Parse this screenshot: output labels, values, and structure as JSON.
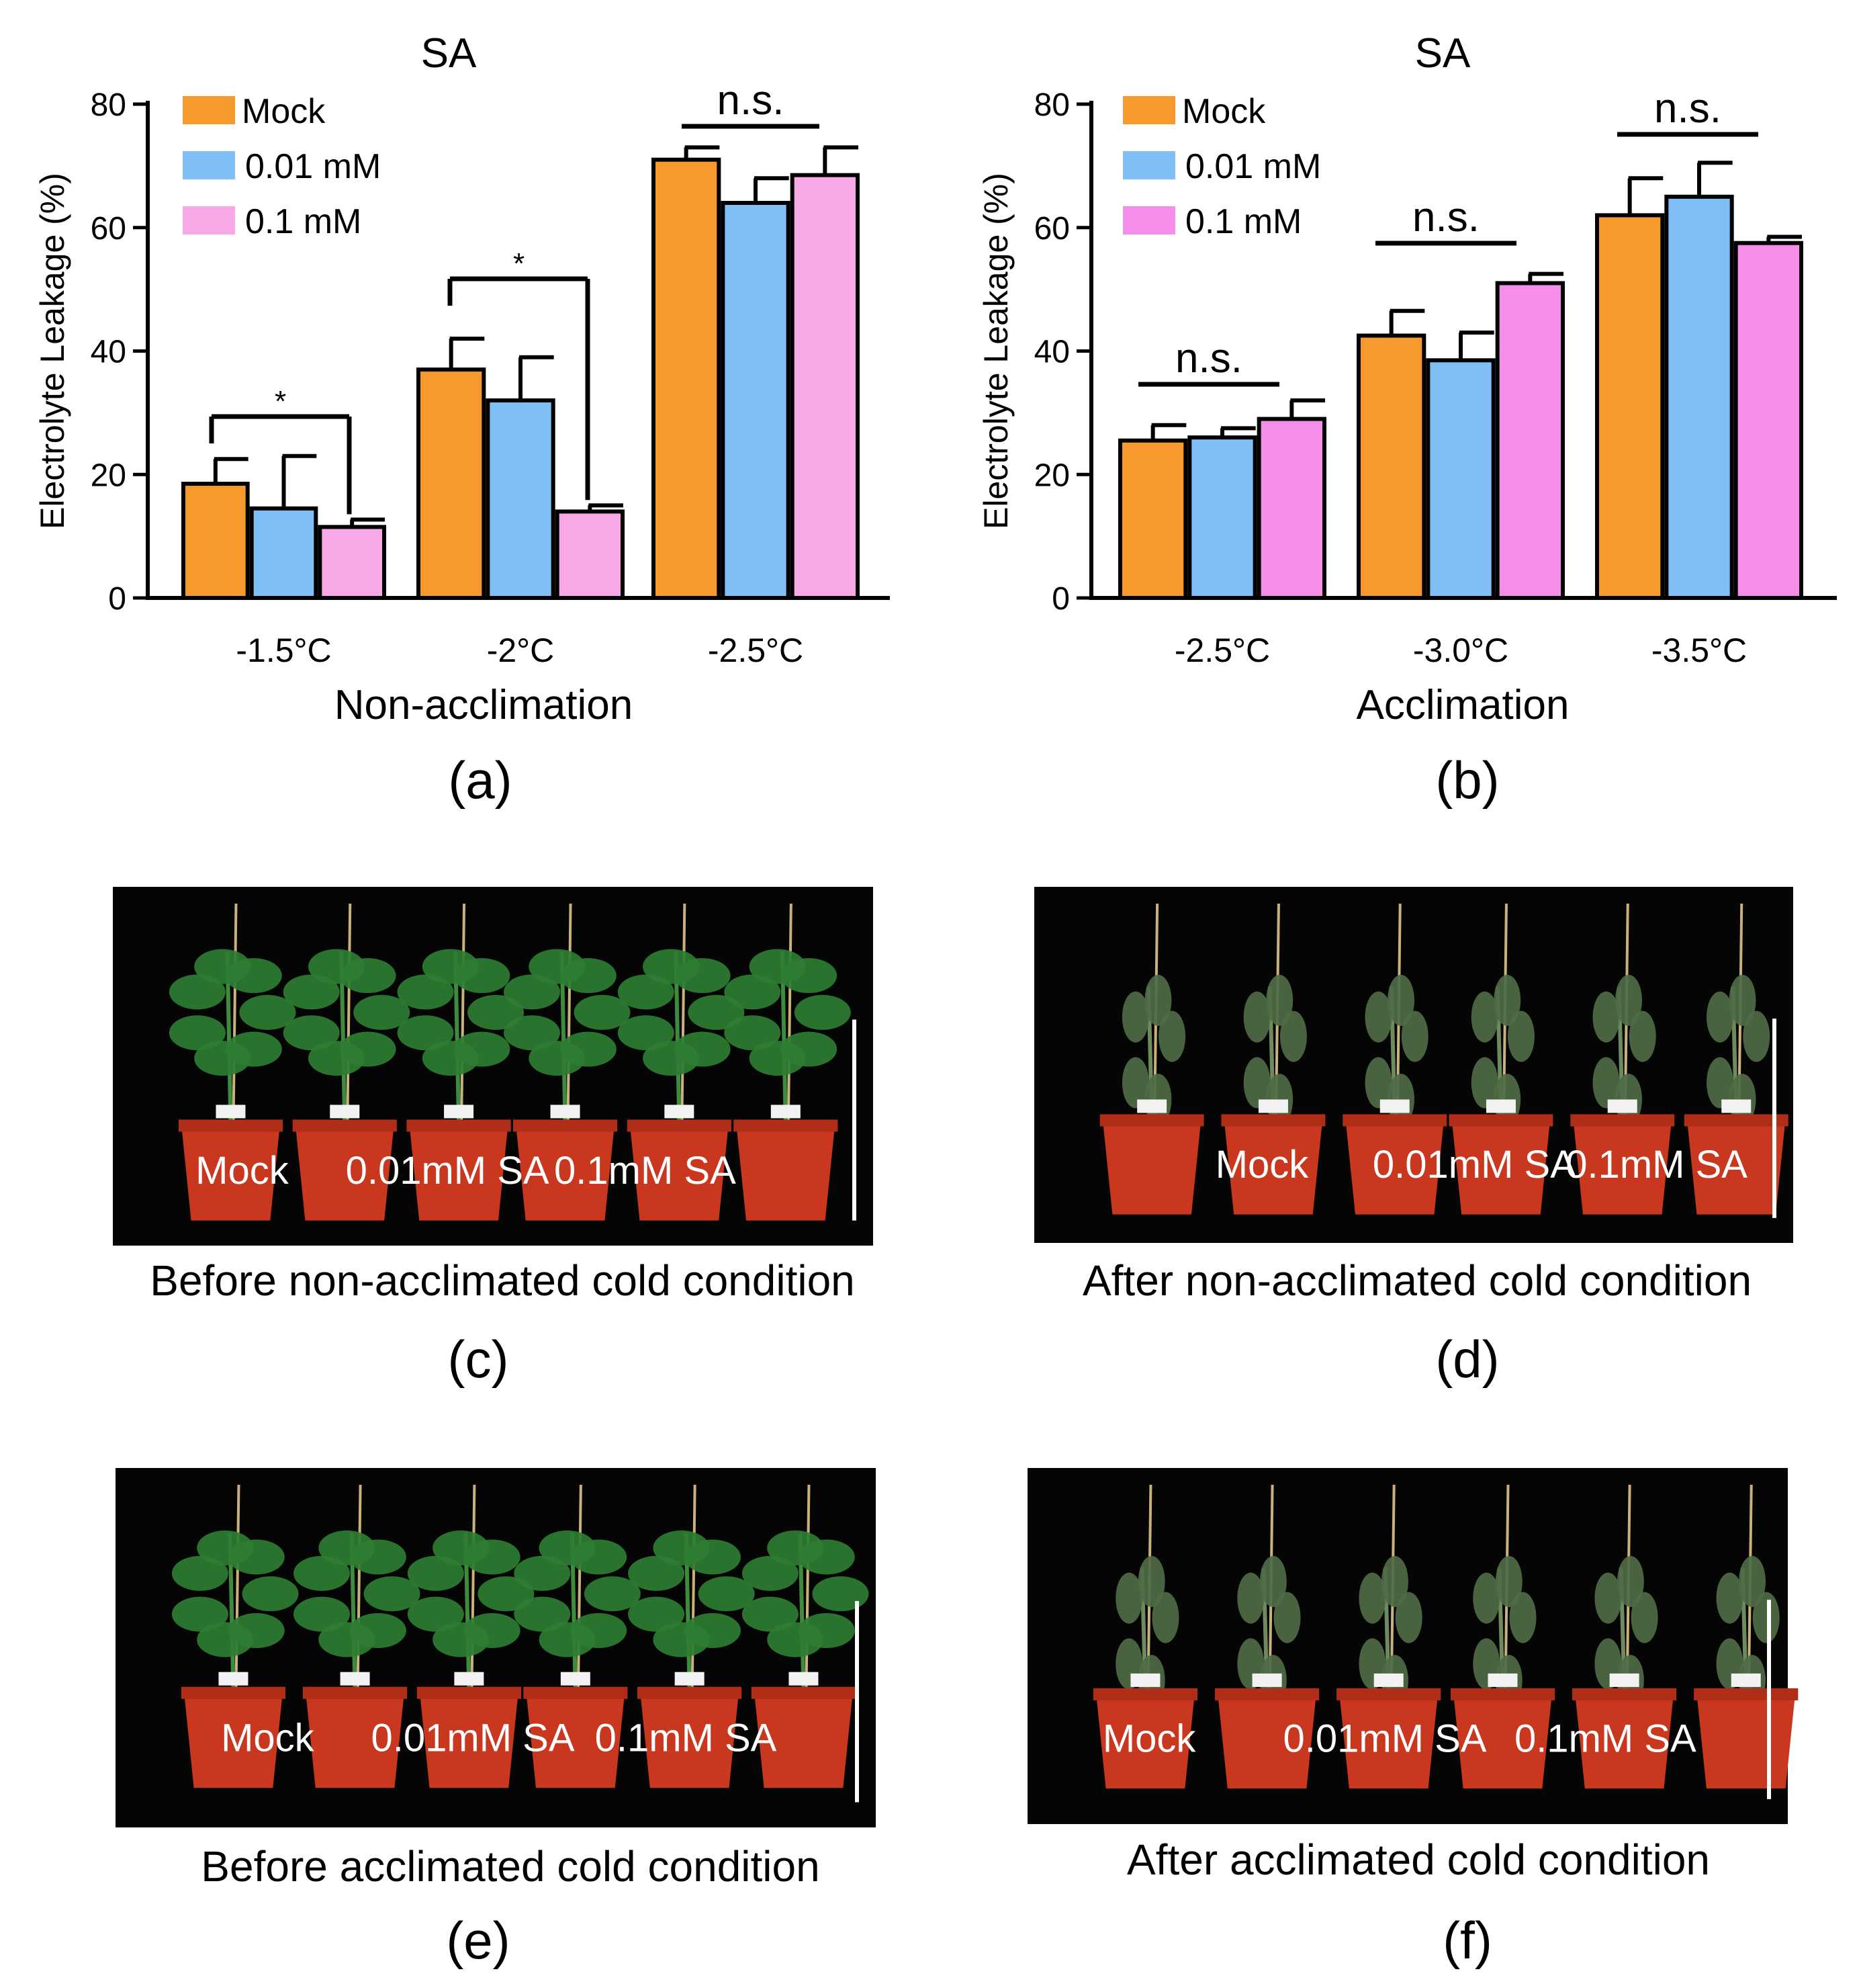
{
  "chart_data": [
    {
      "type": "bar",
      "panel": "(a)",
      "title": "SA",
      "xlabel": "Non-acclimation",
      "ylabel": "Electrolyte Leakage (%)",
      "ylim": [
        0,
        80
      ],
      "yticks": [
        "0",
        "20",
        "40",
        "60",
        "80"
      ],
      "categories": [
        "-1.5°C",
        "-2°C",
        "-2.5°C"
      ],
      "series": [
        {
          "name": "Mock",
          "color": "#F79A2E",
          "values": [
            18.5,
            37,
            71
          ],
          "errors": [
            4,
            5,
            2
          ]
        },
        {
          "name": "0.01 mM",
          "color": "#7FBFF5",
          "values": [
            14.5,
            32,
            64
          ],
          "errors": [
            8.5,
            7,
            4
          ]
        },
        {
          "name": "0.1 mM",
          "color": "#F8A8E6",
          "values": [
            11.5,
            14,
            68.5
          ],
          "errors": [
            1.2,
            1,
            4.5
          ]
        }
      ],
      "annotations": [
        {
          "text": "*",
          "group": 0
        },
        {
          "text": "*",
          "group": 1
        },
        {
          "text": "n.s.",
          "group": 2
        }
      ],
      "legend": "top-left"
    },
    {
      "type": "bar",
      "panel": "(b)",
      "title": "SA",
      "xlabel": "Acclimation",
      "ylabel": "Electrolyte Leakage (%)",
      "ylim": [
        0,
        80
      ],
      "yticks": [
        "0",
        "20",
        "40",
        "60",
        "80"
      ],
      "categories": [
        "-2.5°C",
        "-3.0°C",
        "-3.5°C"
      ],
      "series": [
        {
          "name": "Mock",
          "color": "#F79A2E",
          "values": [
            25.5,
            42.5,
            62
          ],
          "errors": [
            2.5,
            4,
            6
          ]
        },
        {
          "name": "0.01 mM",
          "color": "#7FBFF5",
          "values": [
            26,
            38.5,
            65
          ],
          "errors": [
            1.5,
            4.5,
            5.5
          ]
        },
        {
          "name": "0.1 mM",
          "color": "#F58EE8",
          "values": [
            29,
            51,
            57.5
          ],
          "errors": [
            3,
            1.5,
            1
          ]
        }
      ],
      "annotations": [
        {
          "text": "n.s.",
          "group": 0
        },
        {
          "text": "n.s.",
          "group": 1
        },
        {
          "text": "n.s.",
          "group": 2
        }
      ],
      "legend": "top-left"
    }
  ],
  "photos": [
    {
      "panel": "(c)",
      "caption": "Before non-acclimated cold condition",
      "labels": [
        "Mock",
        "0.01mM SA",
        "0.1mM SA"
      ],
      "state": "healthy"
    },
    {
      "panel": "(d)",
      "caption": "After non-acclimated cold condition",
      "labels": [
        "Mock",
        "0.01mM SA",
        "0.1mM SA"
      ],
      "state": "wilted"
    },
    {
      "panel": "(e)",
      "caption": "Before acclimated cold condition",
      "labels": [
        "Mock",
        "0.01mM SA",
        "0.1mM SA"
      ],
      "state": "healthy"
    },
    {
      "panel": "(f)",
      "caption": "After acclimated cold condition",
      "labels": [
        "Mock",
        "0.01mM SA",
        "0.1mM SA"
      ],
      "state": "wilted"
    }
  ],
  "colors": {
    "photo_bg": "#050505",
    "pot": "#C9371F",
    "leaf_healthy": "#2E7D32",
    "leaf_wilted": "#4F6B46"
  }
}
